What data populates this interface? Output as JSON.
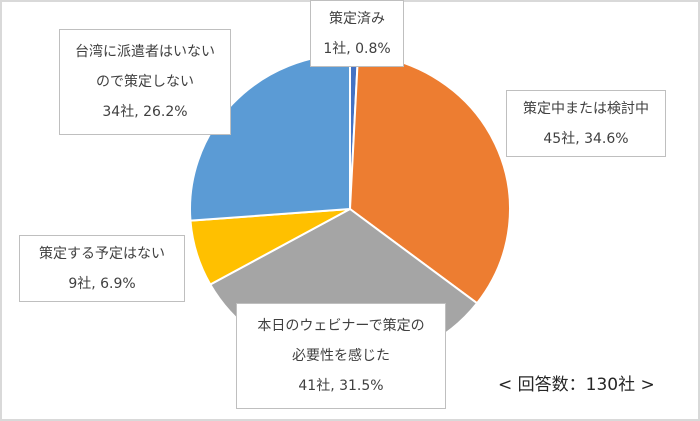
{
  "chart_data": {
    "type": "pie",
    "start": "top",
    "direction": "clockwise",
    "slices": [
      {
        "label": "策定済み",
        "count": "1社",
        "percent": 0.8,
        "value_label": "1社, 0.8%",
        "color": "#4472C4"
      },
      {
        "label": "策定中または検討中",
        "count": "45社",
        "percent": 34.6,
        "value_label": "45社, 34.6%",
        "color": "#ED7D31"
      },
      {
        "label": "本日のウェビナーで策定の必要性を感じた",
        "label_lines": [
          "本日のウェビナーで策定の",
          "必要性を感じた"
        ],
        "count": "41社",
        "percent": 31.5,
        "value_label": "41社, 31.5%",
        "color": "#A5A5A5"
      },
      {
        "label": "策定する予定はない",
        "count": "9社",
        "percent": 6.9,
        "value_label": "9社, 6.9%",
        "color": "#FFC000"
      },
      {
        "label": "台湾に派遣者はいないので策定しない",
        "label_lines": [
          "台湾に派遣者はいない",
          "ので策定しない"
        ],
        "count": "34社",
        "percent": 26.2,
        "value_label": "34社, 26.2%",
        "color": "#5B9BD5"
      }
    ],
    "legend": "none",
    "annotation": "< 回答数：130社 >"
  }
}
